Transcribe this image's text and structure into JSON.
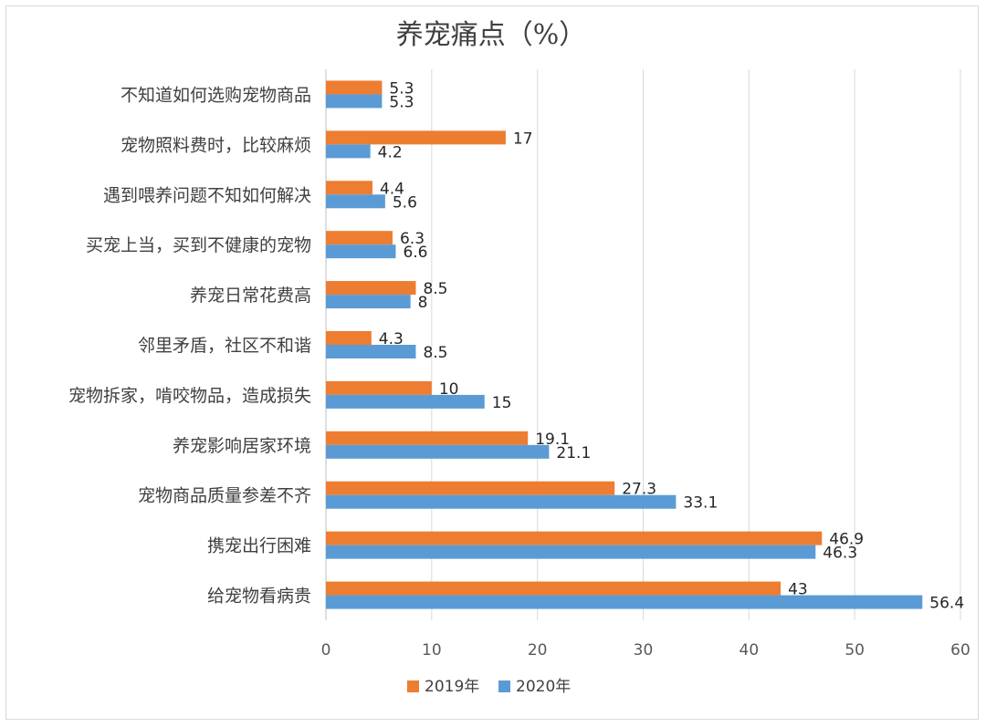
{
  "chart_data": {
    "type": "bar",
    "orientation": "horizontal",
    "title": "养宠痛点（%）",
    "categories": [
      "不知道如何选购宠物商品",
      "宠物照料费时，比较麻烦",
      "遇到喂养问题不知如何解决",
      "买宠上当，买到不健康的宠物",
      "养宠日常花费高",
      "邻里矛盾，社区不和谐",
      "宠物拆家，啃咬物品，造成损失",
      "养宠影响居家环境",
      "宠物商品质量参差不齐",
      "携宠出行困难",
      "给宠物看病贵"
    ],
    "series": [
      {
        "name": "2019年",
        "color": "#ed7d31",
        "values": [
          5.3,
          17,
          4.4,
          6.3,
          8.5,
          4.3,
          10,
          19.1,
          27.3,
          46.9,
          43
        ],
        "labels": [
          "5.3",
          "17",
          "4.4",
          "6.3",
          "8.5",
          "4.3",
          "10",
          "19.1",
          "27.3",
          "46.9",
          "43"
        ]
      },
      {
        "name": "2020年",
        "color": "#5b9bd5",
        "values": [
          5.3,
          4.2,
          5.6,
          6.6,
          8,
          8.5,
          15,
          21.1,
          33.1,
          46.3,
          56.4
        ],
        "labels": [
          "5.3",
          "4.2",
          "5.6",
          "6.6",
          "8",
          "8.5",
          "15",
          "21.1",
          "33.1",
          "46.3",
          "56.4"
        ]
      }
    ],
    "xlim": [
      0,
      60
    ],
    "xticks": [
      "0",
      "10",
      "20",
      "30",
      "40",
      "50",
      "60"
    ],
    "grid": true,
    "legend_position": "bottom"
  }
}
